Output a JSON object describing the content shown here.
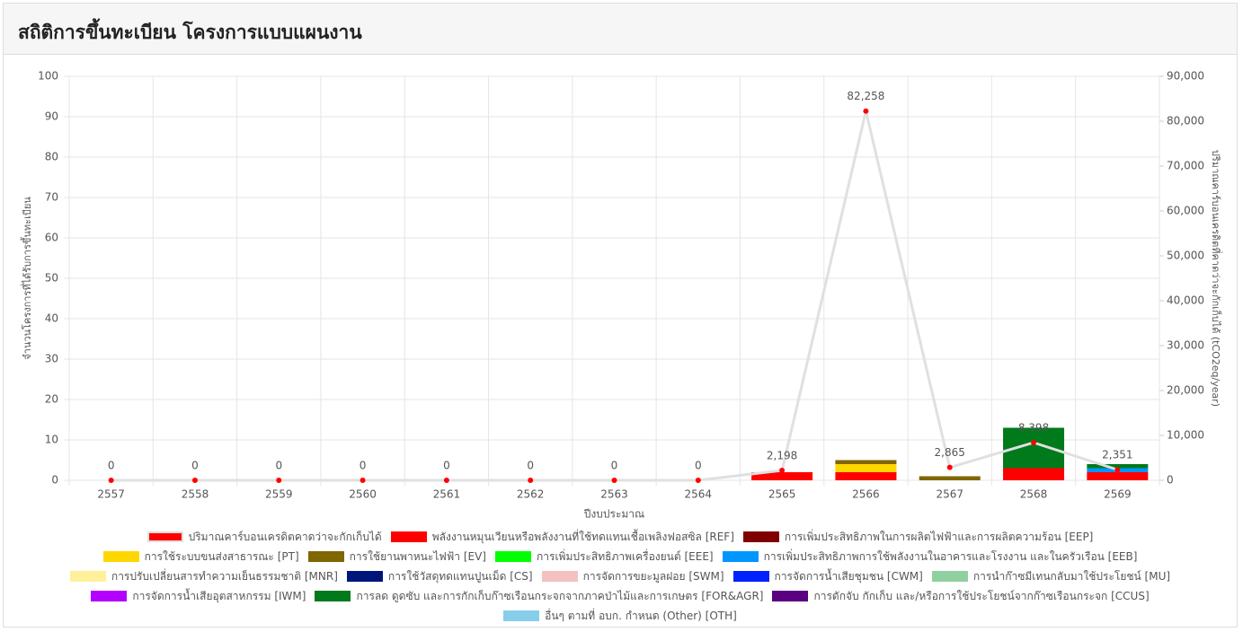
{
  "header": {
    "title": "สถิติการขึ้นทะเบียน โครงการแบบแผนงาน"
  },
  "chart_data": {
    "type": "bar",
    "stacked": true,
    "grid": true,
    "x_label": "ปีงบประมาณ",
    "y_label": "จำนวนโครงการที่ได้รับการขึ้นทะเบียน",
    "y2_label": "ปริมาณคาร์บอนเครดิตที่คาดว่าจะกักเก็บได้ (tCO2eq/year)",
    "categories": [
      "2557",
      "2558",
      "2559",
      "2560",
      "2561",
      "2562",
      "2563",
      "2564",
      "2565",
      "2566",
      "2567",
      "2568",
      "2569"
    ],
    "ylim": [
      0,
      100
    ],
    "yticks": [
      0,
      10,
      20,
      30,
      40,
      50,
      60,
      70,
      80,
      90,
      100
    ],
    "y2lim": [
      0,
      90000
    ],
    "y2ticks": [
      0,
      {
        "value": 10000,
        "label": "10,000"
      },
      {
        "value": 20000,
        "label": "20,000"
      },
      {
        "value": 30000,
        "label": "30,000"
      },
      {
        "value": 40000,
        "label": "40,000"
      },
      {
        "value": 50000,
        "label": "50,000"
      },
      {
        "value": 60000,
        "label": "60,000"
      },
      {
        "value": 70000,
        "label": "70,000"
      },
      {
        "value": 80000,
        "label": "80,000"
      },
      {
        "value": 90000,
        "label": "90,000"
      }
    ],
    "series": [
      {
        "name": "ปริมาณคาร์บอนเครดิตคาดว่าจะกักเก็บได้",
        "type": "line",
        "axis": "y2",
        "color": "#ff0000",
        "line_color": "#e0e0e0",
        "values": [
          0,
          0,
          0,
          0,
          0,
          0,
          0,
          0,
          2198,
          82258,
          2865,
          8398,
          2351
        ],
        "value_labels": [
          "0",
          "0",
          "0",
          "0",
          "0",
          "0",
          "0",
          "0",
          "2,198",
          "82,258",
          "2,865",
          "8,398",
          "2,351"
        ]
      },
      {
        "name": "พลังงานหมุนเวียนหรือพลังงานที่ใช้ทดแทนเชื้อเพลิงฟอสซิล [REF]",
        "color": "#ff0000",
        "values": [
          0,
          0,
          0,
          0,
          0,
          0,
          0,
          0,
          2,
          2,
          0,
          3,
          2
        ]
      },
      {
        "name": "การเพิ่มประสิทธิภาพในการผลิตไฟฟ้าและการผลิตความร้อน [EEP]",
        "color": "#800000",
        "values": [
          0,
          0,
          0,
          0,
          0,
          0,
          0,
          0,
          0,
          0,
          0,
          0,
          0
        ]
      },
      {
        "name": "การใช้ระบบขนส่งสาธารณะ [PT]",
        "color": "#ffd700",
        "values": [
          0,
          0,
          0,
          0,
          0,
          0,
          0,
          0,
          0,
          2,
          0,
          0,
          0
        ]
      },
      {
        "name": "การใช้ยานพาหนะไฟฟ้า [EV]",
        "color": "#806600",
        "values": [
          0,
          0,
          0,
          0,
          0,
          0,
          0,
          0,
          0,
          1,
          1,
          0,
          0
        ]
      },
      {
        "name": "การเพิ่มประสิทธิภาพเครื่องยนต์ [EEE]",
        "color": "#00ff00",
        "values": [
          0,
          0,
          0,
          0,
          0,
          0,
          0,
          0,
          0,
          0,
          0,
          0,
          0
        ]
      },
      {
        "name": "การเพิ่มประสิทธิภาพการใช้พลังงานในอาคารและโรงงาน และในครัวเรือน [EEB]",
        "color": "#0096ff",
        "values": [
          0,
          0,
          0,
          0,
          0,
          0,
          0,
          0,
          0,
          0,
          0,
          0,
          1
        ]
      },
      {
        "name": "การปรับเปลี่ยนสารทำความเย็นธรรมชาติ [MNR]",
        "color": "#fff099",
        "values": [
          0,
          0,
          0,
          0,
          0,
          0,
          0,
          0,
          0,
          0,
          0,
          0,
          0
        ]
      },
      {
        "name": "การใช้วัสดุทดแทนปูนเม็ด [CS]",
        "color": "#00157a",
        "values": [
          0,
          0,
          0,
          0,
          0,
          0,
          0,
          0,
          0,
          0,
          0,
          0,
          0
        ]
      },
      {
        "name": "การจัดการขยะมูลฝอย [SWM]",
        "color": "#f5c0c0",
        "values": [
          0,
          0,
          0,
          0,
          0,
          0,
          0,
          0,
          0,
          0,
          0,
          0,
          0
        ]
      },
      {
        "name": "การจัดการน้ำเสียชุมชน [CWM]",
        "color": "#0022ff",
        "values": [
          0,
          0,
          0,
          0,
          0,
          0,
          0,
          0,
          0,
          0,
          0,
          0,
          0
        ]
      },
      {
        "name": "การนำก๊าซมีเทนกลับมาใช้ประโยชน์ [MU]",
        "color": "#90d0a0",
        "values": [
          0,
          0,
          0,
          0,
          0,
          0,
          0,
          0,
          0,
          0,
          0,
          0,
          0
        ]
      },
      {
        "name": "การจัดการน้ำเสียอุตสาหกรรม [IWM]",
        "color": "#b300ff",
        "values": [
          0,
          0,
          0,
          0,
          0,
          0,
          0,
          0,
          0,
          0,
          0,
          0,
          0
        ]
      },
      {
        "name": "การลด ดูดซับ และการกักเก็บก๊าซเรือนกระจกจากภาคป่าไม้และการเกษตร [FOR&AGR]",
        "color": "#007a1a",
        "values": [
          0,
          0,
          0,
          0,
          0,
          0,
          0,
          0,
          0,
          0,
          0,
          10,
          1
        ]
      },
      {
        "name": "การดักจับ กักเก็บ และ/หรือการใช้ประโยชน์จากก๊าซเรือนกระจก [CCUS]",
        "color": "#5a0080",
        "values": [
          0,
          0,
          0,
          0,
          0,
          0,
          0,
          0,
          0,
          0,
          0,
          0,
          0
        ]
      },
      {
        "name": "อื่นๆ ตามที่ อบก. กำหนด (Other) [OTH]",
        "color": "#87ceeb",
        "values": [
          0,
          0,
          0,
          0,
          0,
          0,
          0,
          0,
          0,
          0,
          0,
          0,
          0
        ]
      }
    ]
  }
}
